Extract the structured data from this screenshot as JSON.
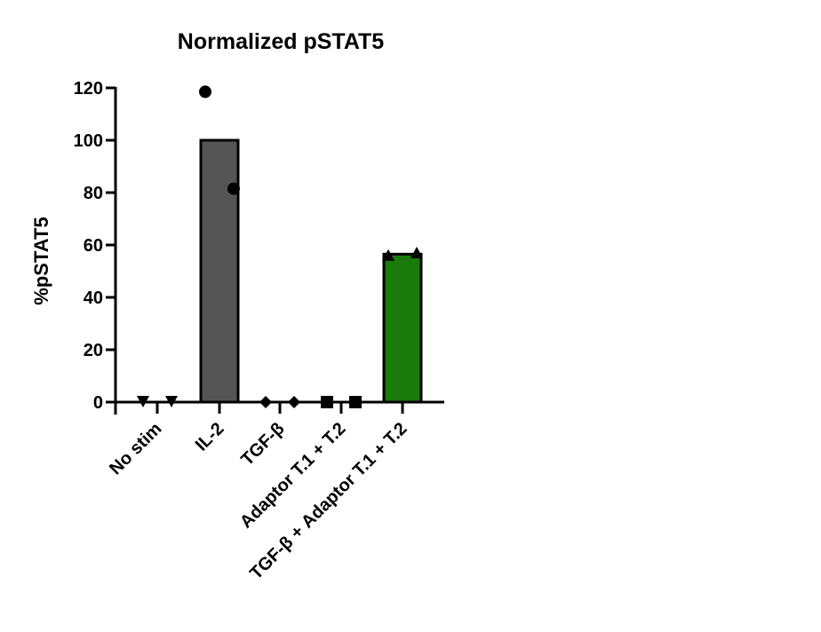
{
  "chart_data": {
    "type": "bar",
    "title": "Normalized pSTAT5",
    "xlabel": "",
    "ylabel": "%pSTAT5",
    "ylim": [
      0,
      120
    ],
    "yticks": [
      0,
      20,
      40,
      60,
      80,
      100,
      120
    ],
    "grid": false,
    "categories": [
      "No stim",
      "IL-2",
      "TGF-β",
      "Adaptor T.1 + T.2",
      "TGF-β + Adaptor T.1 + T.2"
    ],
    "values": [
      0,
      100,
      0,
      0,
      56.5
    ],
    "colors": [
      "#ffffff",
      "#555555",
      "#ffffff",
      "#ffffff",
      "#1a7a0c"
    ],
    "points": [
      {
        "category": "No stim",
        "marker": "triangle-down",
        "values": [
          0,
          0
        ]
      },
      {
        "category": "IL-2",
        "marker": "circle",
        "values": [
          118.5,
          81.5
        ]
      },
      {
        "category": "TGF-β",
        "marker": "diamond",
        "values": [
          0,
          0
        ]
      },
      {
        "category": "Adaptor T.1 + T.2",
        "marker": "square",
        "values": [
          0,
          0
        ]
      },
      {
        "category": "TGF-β + Adaptor T.1 + T.2",
        "marker": "triangle-up",
        "values": [
          56,
          57
        ]
      }
    ]
  }
}
